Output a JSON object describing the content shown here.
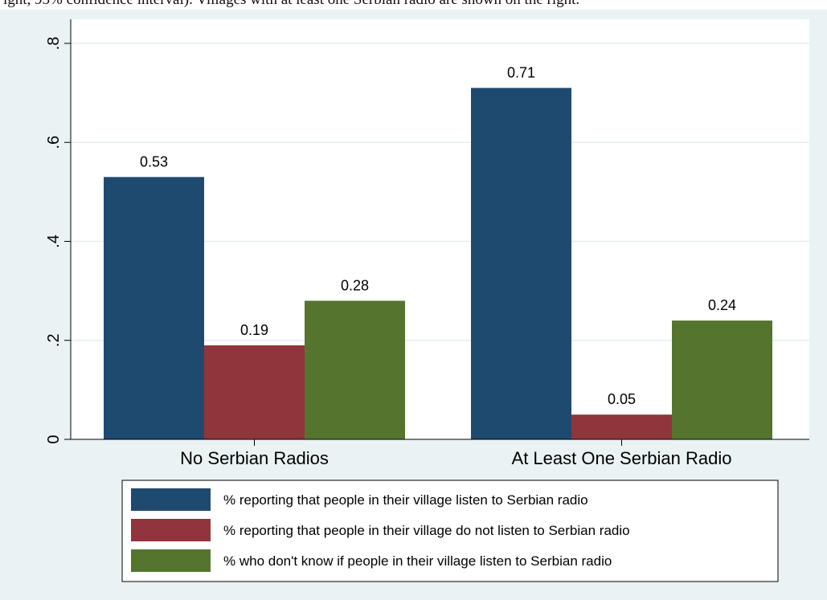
{
  "top_text": "ight, 95% confidence interval). Villages with at least one Serbian radio are shown on the right.",
  "colors": {
    "series_1": "#1f4a70",
    "series_2": "#90353b",
    "series_3": "#55752f",
    "background": "#eaf2f3",
    "plot_area": "#ffffff",
    "grid": "#e4edf0"
  },
  "chart_data": {
    "type": "bar",
    "title": "",
    "xlabel": "",
    "ylabel": "",
    "ylim": [
      0,
      0.8
    ],
    "y_ticks": [
      0,
      0.2,
      0.4,
      0.6,
      0.8
    ],
    "y_tick_labels": [
      "0",
      ".2",
      ".4",
      ".6",
      ".8"
    ],
    "grid": true,
    "legend_position": "bottom",
    "categories": [
      "No Serbian Radios",
      "At Least One Serbian Radio"
    ],
    "series": [
      {
        "name": "% reporting that people in their village listen to Serbian radio",
        "values": [
          0.53,
          0.71
        ],
        "labels": [
          "0.53",
          "0.71"
        ]
      },
      {
        "name": "% reporting that people in their village do not listen to Serbian radio",
        "values": [
          0.19,
          0.05
        ],
        "labels": [
          "0.19",
          "0.05"
        ]
      },
      {
        "name": "% who don't know if people in their village listen to Serbian radio",
        "values": [
          0.28,
          0.24
        ],
        "labels": [
          "0.28",
          "0.24"
        ]
      }
    ]
  }
}
